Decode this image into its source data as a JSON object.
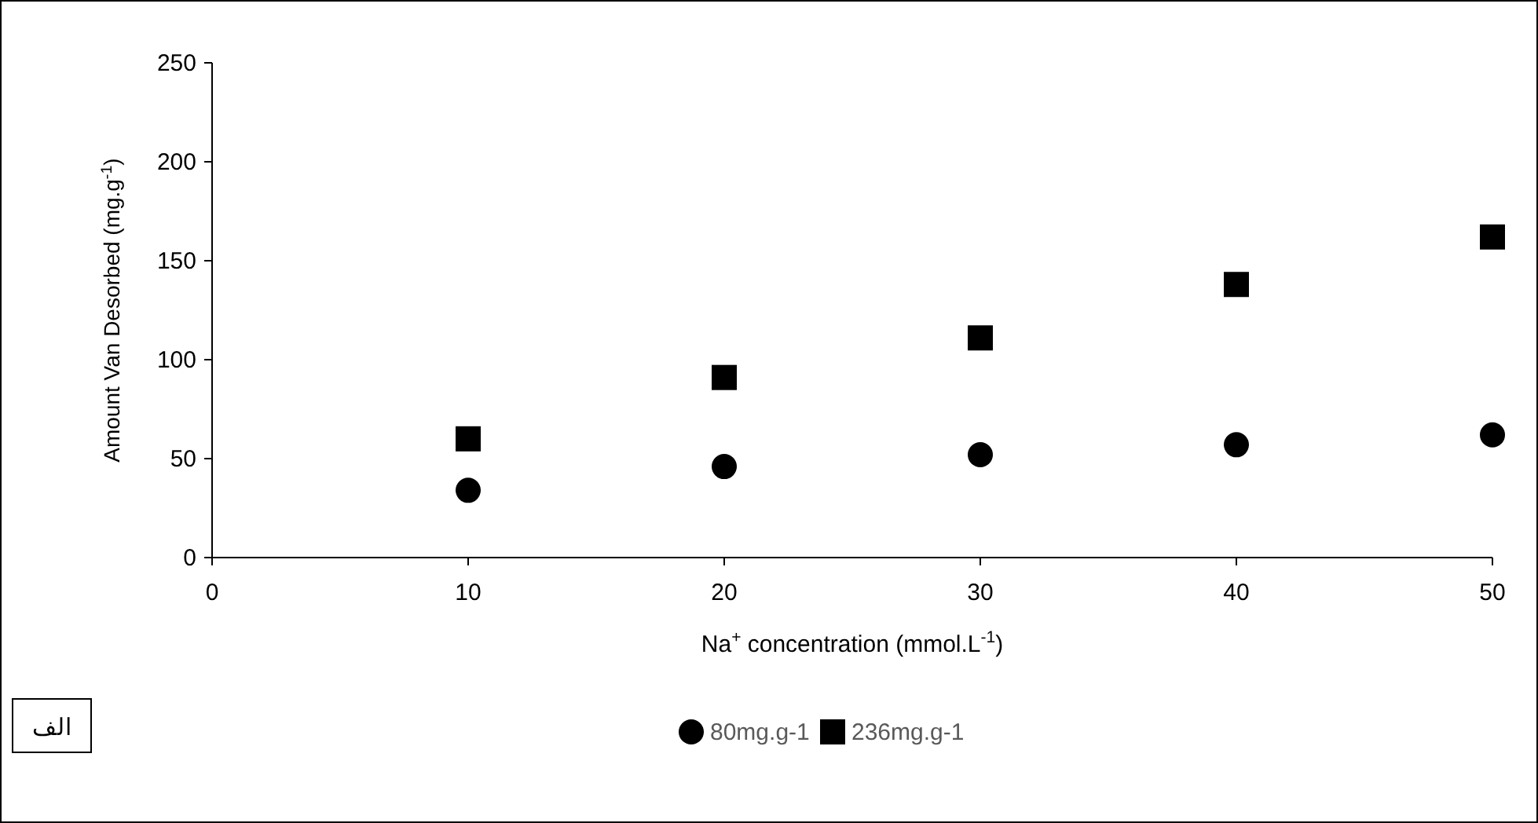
{
  "chart_data": {
    "type": "scatter",
    "xlabel": "Na$^{+}$ concentration (mmol.L$^{-1}$)",
    "ylabel": "Amount  Van Desorbed (mg.g$^{-1}$)",
    "x": [
      10,
      20,
      30,
      40,
      50
    ],
    "series": [
      {
        "name": "80mg.g-1",
        "color": "#000000",
        "marker": "circle",
        "values": [
          34,
          46,
          52,
          57,
          62
        ]
      },
      {
        "name": "236mg.g-1",
        "color": "#000000",
        "marker": "square",
        "values": [
          60,
          91,
          111,
          138,
          162
        ]
      }
    ],
    "xlim": [
      0,
      50
    ],
    "xticks": [
      0,
      10,
      20,
      30,
      40,
      50
    ],
    "ylim": [
      0,
      250
    ],
    "yticks": [
      0,
      50,
      100,
      150,
      200,
      250
    ],
    "grid": false,
    "legend": "bottom",
    "annotations": [
      "الف"
    ]
  }
}
